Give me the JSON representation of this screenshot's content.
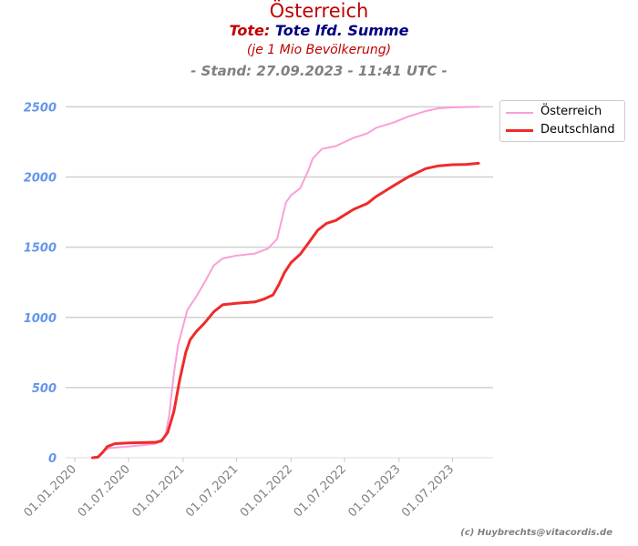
{
  "header": {
    "title": "Österreich",
    "metric_prefix": "Tote:",
    "metric_name": "Tote lfd. Summe",
    "subtitle": "(je 1 Mio Bevölkerung)",
    "stand": "- Stand: 27.09.2023 - 11:41 UTC -"
  },
  "copyright": "(c) Huybrechts@vitacordis.de",
  "colors": {
    "austria": "#f99fd8",
    "germany": "#ef2b2b",
    "ytick": "#6495ed",
    "xtick": "#808080"
  },
  "chart_data": {
    "type": "line",
    "ylim": [
      0,
      2600
    ],
    "yticks": [
      0,
      500,
      1000,
      1500,
      2000,
      2500
    ],
    "xlim": [
      "2019-12-01",
      "2023-11-15"
    ],
    "xticks": [
      "2020-01-01",
      "2020-07-01",
      "2021-01-01",
      "2021-07-01",
      "2022-01-01",
      "2022-07-01",
      "2023-01-01",
      "2023-07-01"
    ],
    "xtick_labels": [
      "01.01.2020",
      "01.07.2020",
      "01.01.2021",
      "01.07.2021",
      "01.01.2022",
      "01.07.2022",
      "01.01.2023",
      "01.07.2023"
    ],
    "grid": "horizontal",
    "legend_position": "top-right",
    "series": [
      {
        "name": "Österreich",
        "color": "#f99fd8",
        "points": [
          [
            "2020-03-01",
            0
          ],
          [
            "2020-03-20",
            5
          ],
          [
            "2020-04-10",
            55
          ],
          [
            "2020-05-01",
            70
          ],
          [
            "2020-07-01",
            80
          ],
          [
            "2020-10-01",
            100
          ],
          [
            "2020-11-01",
            150
          ],
          [
            "2020-11-15",
            300
          ],
          [
            "2020-12-01",
            600
          ],
          [
            "2020-12-15",
            800
          ],
          [
            "2021-01-15",
            1050
          ],
          [
            "2021-02-15",
            1150
          ],
          [
            "2021-03-15",
            1250
          ],
          [
            "2021-04-15",
            1370
          ],
          [
            "2021-05-15",
            1420
          ],
          [
            "2021-07-01",
            1440
          ],
          [
            "2021-09-01",
            1455
          ],
          [
            "2021-10-15",
            1490
          ],
          [
            "2021-11-15",
            1560
          ],
          [
            "2021-12-01",
            1700
          ],
          [
            "2021-12-15",
            1820
          ],
          [
            "2022-01-01",
            1870
          ],
          [
            "2022-02-01",
            1920
          ],
          [
            "2022-03-01",
            2050
          ],
          [
            "2022-03-15",
            2130
          ],
          [
            "2022-04-15",
            2200
          ],
          [
            "2022-06-01",
            2220
          ],
          [
            "2022-07-01",
            2250
          ],
          [
            "2022-08-01",
            2280
          ],
          [
            "2022-09-15",
            2310
          ],
          [
            "2022-10-15",
            2350
          ],
          [
            "2022-12-15",
            2390
          ],
          [
            "2023-02-01",
            2430
          ],
          [
            "2023-04-01",
            2470
          ],
          [
            "2023-05-15",
            2490
          ],
          [
            "2023-07-01",
            2496
          ],
          [
            "2023-09-27",
            2500
          ]
        ]
      },
      {
        "name": "Deutschland",
        "color": "#ef2b2b",
        "points": [
          [
            "2020-03-01",
            0
          ],
          [
            "2020-03-20",
            5
          ],
          [
            "2020-04-05",
            40
          ],
          [
            "2020-04-20",
            80
          ],
          [
            "2020-05-15",
            100
          ],
          [
            "2020-07-01",
            105
          ],
          [
            "2020-10-01",
            110
          ],
          [
            "2020-10-20",
            120
          ],
          [
            "2020-11-10",
            180
          ],
          [
            "2020-12-01",
            330
          ],
          [
            "2020-12-20",
            550
          ],
          [
            "2021-01-10",
            750
          ],
          [
            "2021-01-25",
            840
          ],
          [
            "2021-02-15",
            900
          ],
          [
            "2021-03-15",
            960
          ],
          [
            "2021-04-15",
            1040
          ],
          [
            "2021-05-15",
            1090
          ],
          [
            "2021-07-01",
            1100
          ],
          [
            "2021-09-01",
            1110
          ],
          [
            "2021-10-01",
            1130
          ],
          [
            "2021-11-01",
            1160
          ],
          [
            "2021-11-20",
            1230
          ],
          [
            "2021-12-10",
            1320
          ],
          [
            "2022-01-01",
            1390
          ],
          [
            "2022-02-01",
            1450
          ],
          [
            "2022-03-01",
            1530
          ],
          [
            "2022-04-01",
            1620
          ],
          [
            "2022-05-01",
            1670
          ],
          [
            "2022-06-01",
            1690
          ],
          [
            "2022-07-01",
            1730
          ],
          [
            "2022-08-01",
            1770
          ],
          [
            "2022-09-15",
            1810
          ],
          [
            "2022-10-15",
            1860
          ],
          [
            "2022-12-15",
            1940
          ],
          [
            "2023-02-01",
            2000
          ],
          [
            "2023-04-01",
            2060
          ],
          [
            "2023-05-15",
            2080
          ],
          [
            "2023-07-01",
            2088
          ],
          [
            "2023-08-15",
            2090
          ],
          [
            "2023-09-27",
            2098
          ]
        ]
      }
    ]
  }
}
